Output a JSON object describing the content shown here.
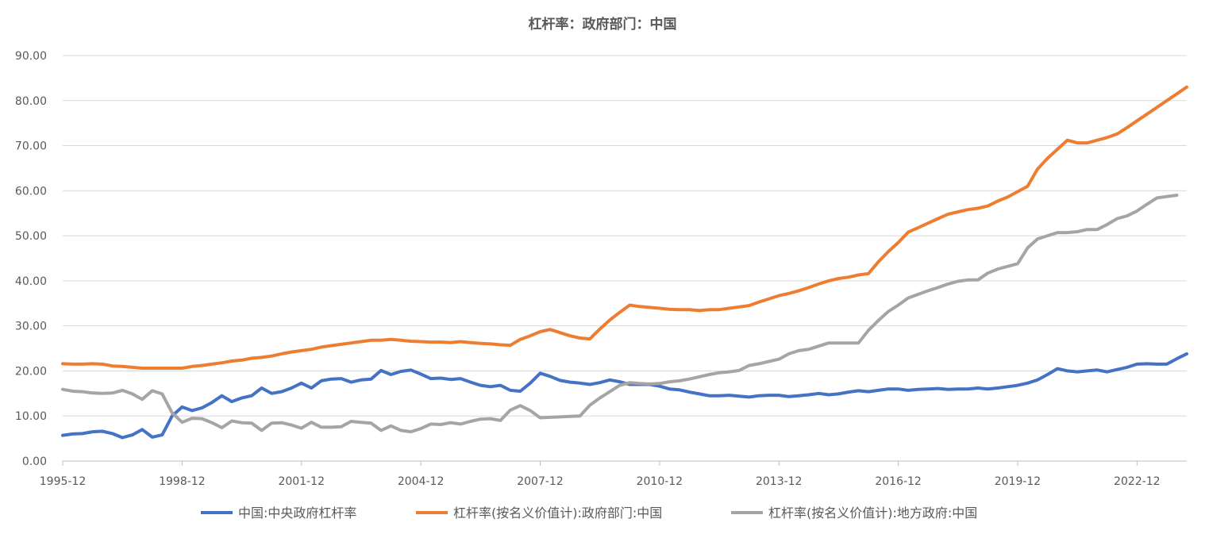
{
  "chart_data": {
    "type": "line",
    "title": "杠杆率：政府部门：中国",
    "xlabel": "",
    "ylabel": "",
    "ylim": [
      0,
      90
    ],
    "y_ticks": [
      "0.00",
      "10.00",
      "20.00",
      "30.00",
      "40.00",
      "50.00",
      "60.00",
      "70.00",
      "80.00",
      "90.00"
    ],
    "x_ticks": [
      "1995-12",
      "1998-12",
      "2001-12",
      "2004-12",
      "2007-12",
      "2010-12",
      "2013-12",
      "2016-12",
      "2019-12",
      "2022-12"
    ],
    "x_start": "1995-12",
    "x_step": "quarter",
    "legend_position": "bottom",
    "grid": true,
    "series": [
      {
        "name": "中国:中央政府杠杆率",
        "color": "#4472C4",
        "values": [
          5.7,
          6.0,
          6.1,
          6.5,
          6.6,
          6.1,
          5.2,
          5.8,
          7.0,
          5.3,
          5.8,
          10.0,
          12.0,
          11.2,
          11.8,
          13.0,
          14.5,
          13.2,
          14.0,
          14.5,
          16.2,
          15.0,
          15.4,
          16.2,
          17.3,
          16.2,
          17.8,
          18.2,
          18.3,
          17.5,
          18.0,
          18.2,
          20.1,
          19.2,
          19.9,
          20.2,
          19.3,
          18.3,
          18.4,
          18.1,
          18.3,
          17.5,
          16.8,
          16.5,
          16.8,
          15.7,
          15.5,
          17.3,
          19.5,
          18.8,
          17.9,
          17.5,
          17.3,
          17.0,
          17.4,
          18.0,
          17.6,
          17.0,
          17.0,
          17.0,
          16.6,
          16.0,
          15.8,
          15.3,
          14.9,
          14.5,
          14.5,
          14.6,
          14.4,
          14.2,
          14.5,
          14.6,
          14.6,
          14.3,
          14.5,
          14.7,
          15.0,
          14.7,
          14.9,
          15.3,
          15.6,
          15.4,
          15.7,
          16.0,
          16.0,
          15.7,
          15.9,
          16.0,
          16.1,
          15.9,
          16.0,
          16.0,
          16.2,
          16.0,
          16.2,
          16.5,
          16.8,
          17.3,
          18.0,
          19.2,
          20.5,
          20.0,
          19.8,
          20.0,
          20.2,
          19.8,
          20.3,
          20.8,
          21.5,
          21.6,
          21.5,
          21.5,
          22.7,
          23.8
        ]
      },
      {
        "name": "杠杆率(按名义价值计):政府部门:中国",
        "color": "#ED7D31",
        "values": [
          21.6,
          21.5,
          21.5,
          21.6,
          21.5,
          21.1,
          21.0,
          20.8,
          20.6,
          20.6,
          20.6,
          20.6,
          20.6,
          21.0,
          21.2,
          21.5,
          21.8,
          22.2,
          22.4,
          22.8,
          23.0,
          23.3,
          23.8,
          24.2,
          24.5,
          24.8,
          25.3,
          25.6,
          25.9,
          26.2,
          26.5,
          26.8,
          26.8,
          27.0,
          26.8,
          26.6,
          26.5,
          26.4,
          26.4,
          26.3,
          26.5,
          26.3,
          26.1,
          26.0,
          25.8,
          25.7,
          27.0,
          27.8,
          28.7,
          29.2,
          28.5,
          27.8,
          27.3,
          27.1,
          29.3,
          31.3,
          33.0,
          34.6,
          34.3,
          34.1,
          33.9,
          33.7,
          33.6,
          33.6,
          33.4,
          33.6,
          33.6,
          33.9,
          34.2,
          34.5,
          35.3,
          36.0,
          36.7,
          37.2,
          37.8,
          38.5,
          39.3,
          40.0,
          40.5,
          40.8,
          41.3,
          41.6,
          44.2,
          46.5,
          48.5,
          50.8,
          51.8,
          52.8,
          53.8,
          54.8,
          55.3,
          55.8,
          56.1,
          56.6,
          57.7,
          58.6,
          59.8,
          61.0,
          64.8,
          67.2,
          69.2,
          71.2,
          70.6,
          70.6,
          71.2,
          71.8,
          72.6,
          74.0,
          75.5,
          77.0,
          78.5,
          80.0,
          81.5,
          83.0
        ]
      },
      {
        "name": "杠杆率(按名义价值计):地方政府:中国",
        "color": "#A5A5A5",
        "values": [
          15.9,
          15.5,
          15.4,
          15.1,
          15.0,
          15.1,
          15.7,
          14.9,
          13.7,
          15.6,
          14.9,
          10.7,
          8.6,
          9.5,
          9.4,
          8.5,
          7.4,
          8.9,
          8.5,
          8.4,
          6.8,
          8.4,
          8.5,
          8.0,
          7.3,
          8.6,
          7.5,
          7.5,
          7.6,
          8.8,
          8.6,
          8.4,
          6.8,
          7.8,
          6.8,
          6.5,
          7.2,
          8.2,
          8.1,
          8.5,
          8.2,
          8.8,
          9.3,
          9.4,
          9.0,
          11.3,
          12.3,
          11.2,
          9.6,
          9.7,
          9.8,
          9.9,
          10.0,
          12.4,
          14.0,
          15.4,
          16.8,
          17.4,
          17.2,
          17.1,
          17.2,
          17.6,
          17.8,
          18.2,
          18.7,
          19.2,
          19.6,
          19.8,
          20.1,
          21.2,
          21.6,
          22.1,
          22.6,
          23.8,
          24.5,
          24.8,
          25.5,
          26.2,
          26.2,
          26.2,
          26.2,
          29.0,
          31.2,
          33.2,
          34.6,
          36.2,
          37.0,
          37.8,
          38.5,
          39.3,
          39.9,
          40.2,
          40.2,
          41.7,
          42.6,
          43.2,
          43.8,
          47.3,
          49.3,
          50.0,
          50.7,
          50.7,
          50.9,
          51.4,
          51.4,
          52.5,
          53.8,
          54.4,
          55.5,
          57.0,
          58.4,
          58.7,
          59.0
        ]
      }
    ]
  }
}
